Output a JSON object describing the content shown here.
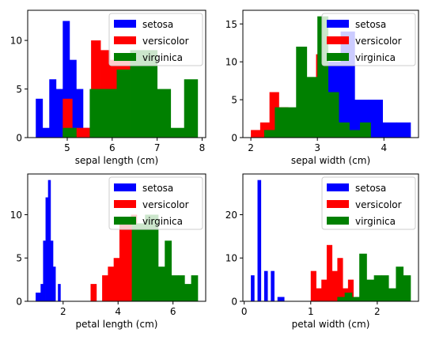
{
  "colors": {
    "setosa": "#0000ff",
    "versicolor": "#ff0000",
    "virginica": "#008000"
  },
  "chart_data": [
    {
      "type": "histogram",
      "xlabel": "sepal length (cm)",
      "xlim": [
        4.12,
        8.08
      ],
      "ylim": [
        0,
        13.1
      ],
      "xticks": [
        5,
        6,
        7,
        8
      ],
      "yticks": [
        0,
        5,
        10
      ],
      "legend": "top-right",
      "series": [
        {
          "name": "setosa",
          "color": "#0000ff",
          "binwidth": 0.15,
          "bins": [
            [
              4.3,
              4
            ],
            [
              4.45,
              1
            ],
            [
              4.6,
              6
            ],
            [
              4.75,
              5
            ],
            [
              4.9,
              12
            ],
            [
              5.05,
              8
            ],
            [
              5.2,
              5
            ],
            [
              5.35,
              1
            ],
            [
              5.5,
              1
            ],
            [
              5.65,
              1
            ]
          ]
        },
        {
          "name": "versicolor",
          "color": "#ff0000",
          "binwidth": 0.21,
          "bins": [
            [
              4.9,
              4
            ],
            [
              5.11,
              1
            ],
            [
              5.32,
              1
            ],
            [
              5.53,
              10
            ],
            [
              5.74,
              9
            ],
            [
              5.95,
              8
            ],
            [
              6.16,
              8
            ],
            [
              6.37,
              8
            ],
            [
              6.58,
              4
            ],
            [
              6.79,
              1
            ]
          ]
        },
        {
          "name": "virginica",
          "color": "#008000",
          "binwidth": 0.3,
          "bins": [
            [
              4.9,
              1
            ],
            [
              5.2,
              0
            ],
            [
              5.5,
              5
            ],
            [
              5.8,
              5
            ],
            [
              6.1,
              7
            ],
            [
              6.4,
              9
            ],
            [
              6.7,
              9
            ],
            [
              7.0,
              5
            ],
            [
              7.3,
              1
            ],
            [
              7.6,
              6
            ]
          ]
        }
      ]
    },
    {
      "type": "histogram",
      "xlabel": "sepal width (cm)",
      "xlim": [
        1.88,
        4.52
      ],
      "ylim": [
        0,
        16.8
      ],
      "xticks": [
        2,
        3,
        4
      ],
      "yticks": [
        0,
        5,
        10,
        15
      ],
      "legend": "top-right",
      "series": [
        {
          "name": "setosa",
          "color": "#0000ff",
          "binwidth": 0.21,
          "bins": [
            [
              2.3,
              1
            ],
            [
              2.51,
              0
            ],
            [
              2.72,
              0
            ],
            [
              2.93,
              7
            ],
            [
              3.14,
              10
            ],
            [
              3.35,
              14
            ],
            [
              3.56,
              5
            ],
            [
              3.77,
              5
            ],
            [
              3.98,
              2
            ],
            [
              4.19,
              2
            ]
          ]
        },
        {
          "name": "versicolor",
          "color": "#ff0000",
          "binwidth": 0.14,
          "bins": [
            [
              2.0,
              1
            ],
            [
              2.14,
              2
            ],
            [
              2.28,
              6
            ],
            [
              2.42,
              4
            ],
            [
              2.56,
              3
            ],
            [
              2.7,
              4
            ],
            [
              2.84,
              7
            ],
            [
              2.98,
              11
            ],
            [
              3.12,
              5
            ],
            [
              3.26,
              1
            ]
          ]
        },
        {
          "name": "virginica",
          "color": "#008000",
          "binwidth": 0.16,
          "bins": [
            [
              2.2,
              1
            ],
            [
              2.36,
              4
            ],
            [
              2.52,
              4
            ],
            [
              2.68,
              12
            ],
            [
              2.84,
              8
            ],
            [
              3.0,
              16
            ],
            [
              3.16,
              6
            ],
            [
              3.32,
              2
            ],
            [
              3.48,
              1
            ],
            [
              3.64,
              2
            ]
          ]
        }
      ]
    },
    {
      "type": "histogram",
      "xlabel": "petal length (cm)",
      "xlim": [
        0.71,
        7.19
      ],
      "ylim": [
        0,
        14.7
      ],
      "xticks": [
        2,
        4,
        6
      ],
      "yticks": [
        0,
        5,
        10
      ],
      "legend": "top-right",
      "series": [
        {
          "name": "setosa",
          "color": "#0000ff",
          "binwidth": 0.09,
          "bins": [
            [
              1.0,
              1
            ],
            [
              1.09,
              1
            ],
            [
              1.18,
              2
            ],
            [
              1.27,
              7
            ],
            [
              1.36,
              12
            ],
            [
              1.45,
              14
            ],
            [
              1.54,
              7
            ],
            [
              1.63,
              4
            ],
            [
              1.72,
              0
            ],
            [
              1.81,
              2
            ]
          ]
        },
        {
          "name": "versicolor",
          "color": "#ff0000",
          "binwidth": 0.21,
          "bins": [
            [
              3.0,
              2
            ],
            [
              3.21,
              0
            ],
            [
              3.42,
              3
            ],
            [
              3.63,
              4
            ],
            [
              3.84,
              5
            ],
            [
              4.05,
              9
            ],
            [
              4.26,
              9
            ],
            [
              4.47,
              10
            ],
            [
              4.68,
              6
            ],
            [
              4.89,
              2
            ]
          ]
        },
        {
          "name": "virginica",
          "color": "#008000",
          "binwidth": 0.24,
          "bins": [
            [
              4.5,
              9
            ],
            [
              4.74,
              9
            ],
            [
              4.98,
              10
            ],
            [
              5.22,
              10
            ],
            [
              5.46,
              4
            ],
            [
              5.7,
              7
            ],
            [
              5.94,
              3
            ],
            [
              6.18,
              3
            ],
            [
              6.42,
              2
            ],
            [
              6.66,
              3
            ]
          ]
        }
      ]
    },
    {
      "type": "histogram",
      "xlabel": "petal width (cm)",
      "xlim": [
        -0.02,
        2.62
      ],
      "ylim": [
        0,
        29.4
      ],
      "xticks": [
        0,
        1,
        2
      ],
      "yticks": [
        0,
        10,
        20
      ],
      "legend": "top-right",
      "series": [
        {
          "name": "setosa",
          "color": "#0000ff",
          "binwidth": 0.05,
          "bins": [
            [
              0.1,
              6
            ],
            [
              0.15,
              0
            ],
            [
              0.2,
              28
            ],
            [
              0.25,
              0
            ],
            [
              0.3,
              7
            ],
            [
              0.35,
              0
            ],
            [
              0.4,
              7
            ],
            [
              0.45,
              0
            ],
            [
              0.5,
              1
            ],
            [
              0.55,
              1
            ]
          ]
        },
        {
          "name": "versicolor",
          "color": "#ff0000",
          "binwidth": 0.08,
          "bins": [
            [
              1.0,
              7
            ],
            [
              1.08,
              3
            ],
            [
              1.16,
              5
            ],
            [
              1.24,
              13
            ],
            [
              1.32,
              7
            ],
            [
              1.4,
              10
            ],
            [
              1.48,
              3
            ],
            [
              1.56,
              5
            ],
            [
              1.64,
              1
            ],
            [
              1.72,
              1
            ]
          ]
        },
        {
          "name": "virginica",
          "color": "#008000",
          "binwidth": 0.11,
          "bins": [
            [
              1.4,
              1
            ],
            [
              1.51,
              2
            ],
            [
              1.62,
              1
            ],
            [
              1.73,
              11
            ],
            [
              1.84,
              5
            ],
            [
              1.95,
              6
            ],
            [
              2.06,
              6
            ],
            [
              2.17,
              3
            ],
            [
              2.28,
              8
            ],
            [
              2.39,
              6
            ]
          ]
        }
      ]
    }
  ]
}
